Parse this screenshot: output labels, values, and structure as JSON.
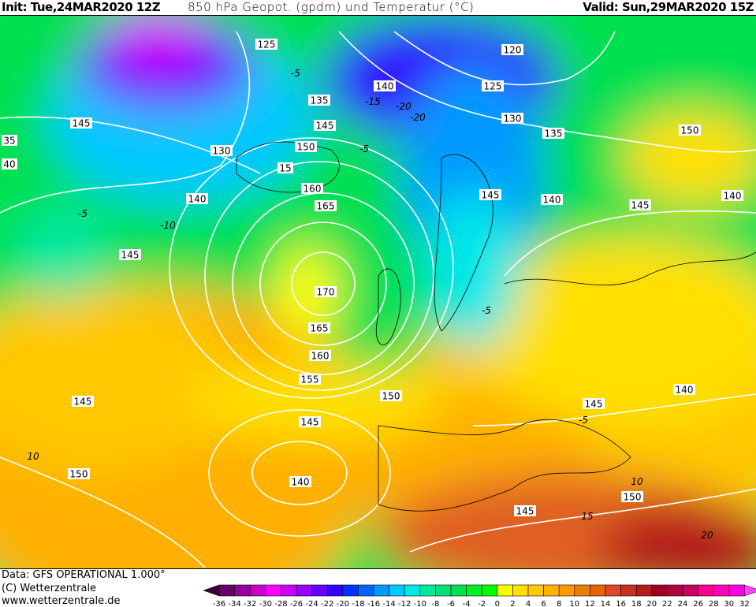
{
  "header": {
    "init": "Init: Tue,24MAR2020 12Z",
    "title": "850 hPa Geopot. (gpdm) und Temperatur (°C)",
    "valid": "Valid: Sun,29MAR2020 15Z"
  },
  "footer": {
    "data_source": "Data: GFS OPERATIONAL 1.000°",
    "copyright": "(C) Wetterzentrale",
    "website": "www.wetterzentrale.de"
  },
  "colorbar": {
    "labels": [
      "-36",
      "-34",
      "-32",
      "-30",
      "-28",
      "-26",
      "-24",
      "-22",
      "-20",
      "-18",
      "-16",
      "-14",
      "-12",
      "-10",
      "-8",
      "-6",
      "-4",
      "-2",
      "0",
      "2",
      "4",
      "6",
      "8",
      "10",
      "12",
      "14",
      "16",
      "18",
      "20",
      "22",
      "24",
      "26",
      "28",
      "30",
      "32"
    ],
    "low_arrow_color": "#3a0036",
    "high_arrow_color": "#ff40ff",
    "colors": [
      "#660066",
      "#990099",
      "#c800c8",
      "#ff00ff",
      "#cc00ff",
      "#9900ff",
      "#6600ff",
      "#3300ff",
      "#0033ff",
      "#0066ff",
      "#0099ff",
      "#00c8ff",
      "#00e8e8",
      "#00e8a0",
      "#00e078",
      "#00e050",
      "#00f028",
      "#00ff00",
      "#ffff00",
      "#ffe000",
      "#ffc800",
      "#ffb000",
      "#ff9900",
      "#e88000",
      "#e86400",
      "#e04828",
      "#c83020",
      "#b41c1c",
      "#a00020",
      "#b40040",
      "#c80064",
      "#ff0090",
      "#ff00c0",
      "#ff00e0"
    ]
  },
  "geopotential_labels": [
    "125",
    "120",
    "140",
    "125",
    "135",
    "145",
    "130",
    "135",
    "145",
    "35",
    "150",
    "130",
    "150",
    "15",
    "40",
    "160",
    "145",
    "140",
    "140",
    "140",
    "165",
    "145",
    "145",
    "170",
    "165",
    "160",
    "155",
    "150",
    "140",
    "145",
    "145",
    "145",
    "150",
    "140",
    "150",
    "145"
  ],
  "temperature_labels": [
    "-5",
    "-15",
    "-20",
    "-20",
    "-5",
    "-10",
    "-5",
    "-5",
    "-5",
    "10",
    "10",
    "15",
    "20"
  ]
}
